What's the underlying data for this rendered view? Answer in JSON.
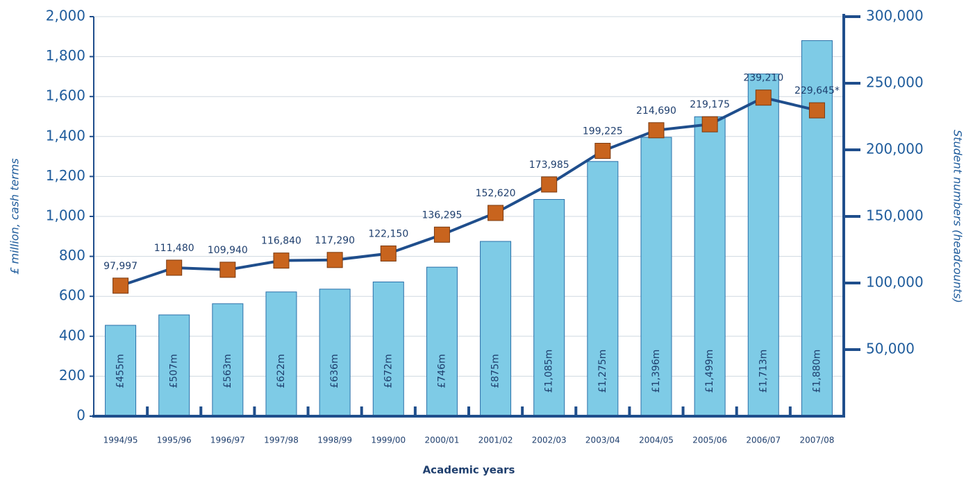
{
  "chart_data": {
    "type": "bar",
    "categories": [
      "1994/95",
      "1995/96",
      "1996/97",
      "1997/98",
      "1998/99",
      "1999/00",
      "2000/01",
      "2001/02",
      "2002/03",
      "2003/04",
      "2004/05",
      "2005/06",
      "2006/07",
      "2007/08"
    ],
    "series": [
      {
        "type": "bar",
        "color": "#7ecbe6",
        "values": [
          455,
          507,
          563,
          622,
          636,
          672,
          746,
          875,
          1085,
          1275,
          1396,
          1499,
          1713,
          1880
        ],
        "value_labels": [
          "£455m",
          "£507m",
          "£563m",
          "£622m",
          "£636m",
          "£672m",
          "£746m",
          "£875m",
          "£1,085m",
          "£1,275m",
          "£1,396m",
          "£1,499m",
          "£1,713m",
          "£1,880m"
        ]
      },
      {
        "type": "line",
        "axis": "y2",
        "color": "#1f4e8c",
        "marker_color": "#c8641e",
        "values": [
          97997,
          111480,
          109940,
          116840,
          117290,
          122150,
          136295,
          152620,
          173985,
          199225,
          214690,
          219175,
          239210,
          229645
        ],
        "value_labels": [
          "97,997",
          "111,480",
          "109,940",
          "116,840",
          "117,290",
          "122,150",
          "136,295",
          "152,620",
          "173,985",
          "199,225",
          "214,690",
          "219,175",
          "239,210",
          "229,645*"
        ]
      }
    ],
    "ylabel": "£ million, cash terms",
    "y2label": "Student numbers (headcounts)",
    "xlabel": "Academic years",
    "ylim": [
      0,
      2000
    ],
    "yticks": [
      0,
      200,
      400,
      600,
      800,
      {
        "value": 1000,
        "label": "1,000"
      },
      {
        "value": 1200,
        "label": "1,200"
      },
      {
        "value": 1400,
        "label": "1,400"
      },
      {
        "value": 1600,
        "label": "1,600"
      },
      {
        "value": 1800,
        "label": "1,800"
      },
      {
        "value": 2000,
        "label": "2,000"
      }
    ],
    "y2lim": [
      0,
      300000
    ],
    "y2ticks": [
      {
        "value": 50000,
        "label": "50,000"
      },
      {
        "value": 100000,
        "label": "100,000"
      },
      {
        "value": 150000,
        "label": "150,000"
      },
      {
        "value": 200000,
        "label": "200,000"
      },
      {
        "value": 250000,
        "label": "250,000"
      },
      {
        "value": 300000,
        "label": "300,000"
      }
    ],
    "grid": true
  }
}
